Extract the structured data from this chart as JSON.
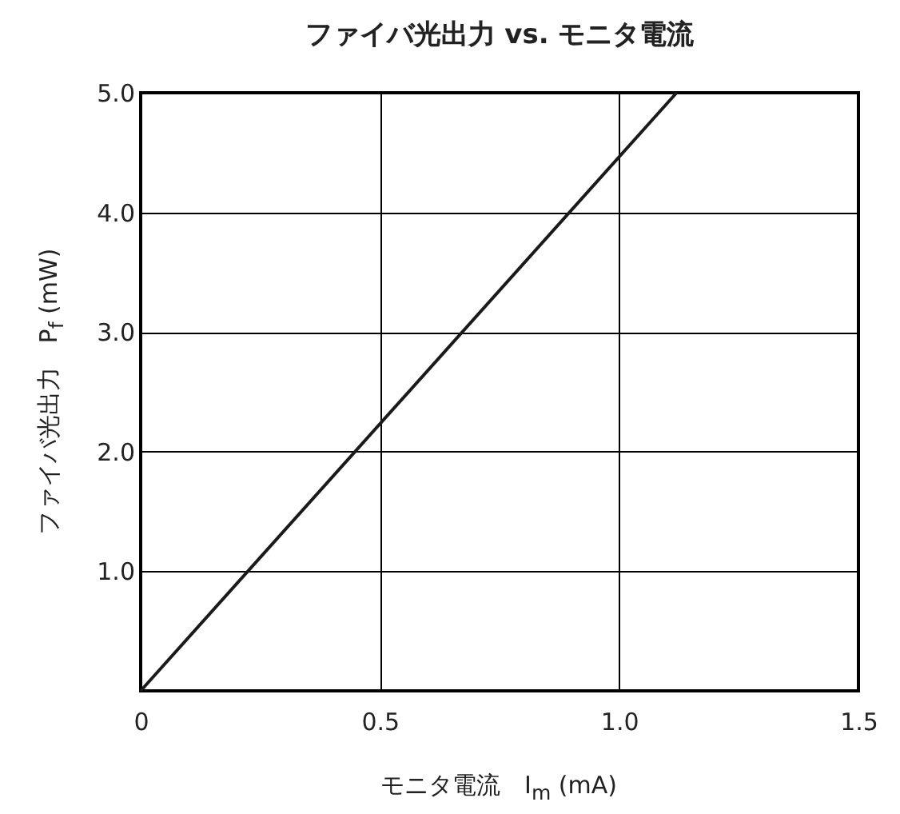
{
  "chart_data": {
    "type": "line",
    "title": "ファイバ光出力 vs. モニタ電流",
    "xlabel": "モニタ電流　I$_{m}$ (mA)",
    "ylabel": "ファイバ光出力　P$_{f}$ (mW)",
    "x": [
      0,
      1.12
    ],
    "series": [
      {
        "color": "#1a1a1a",
        "values": [
          0,
          5.0
        ]
      }
    ],
    "xlim": [
      0,
      1.5
    ],
    "xticks": [
      0,
      0.5,
      {
        "value": 1,
        "label": "1.0"
      },
      1.5
    ],
    "ylim": [
      0,
      5
    ],
    "yticks": [
      {
        "value": 0,
        "label": null
      },
      {
        "value": 1,
        "label": "1.0"
      },
      {
        "value": 2,
        "label": "2.0"
      },
      {
        "value": 3,
        "label": "3.0"
      },
      {
        "value": 4,
        "label": "4.0"
      },
      {
        "value": 5,
        "label": "5.0"
      }
    ],
    "grid": true,
    "marker": "none",
    "line_style": "solid"
  }
}
